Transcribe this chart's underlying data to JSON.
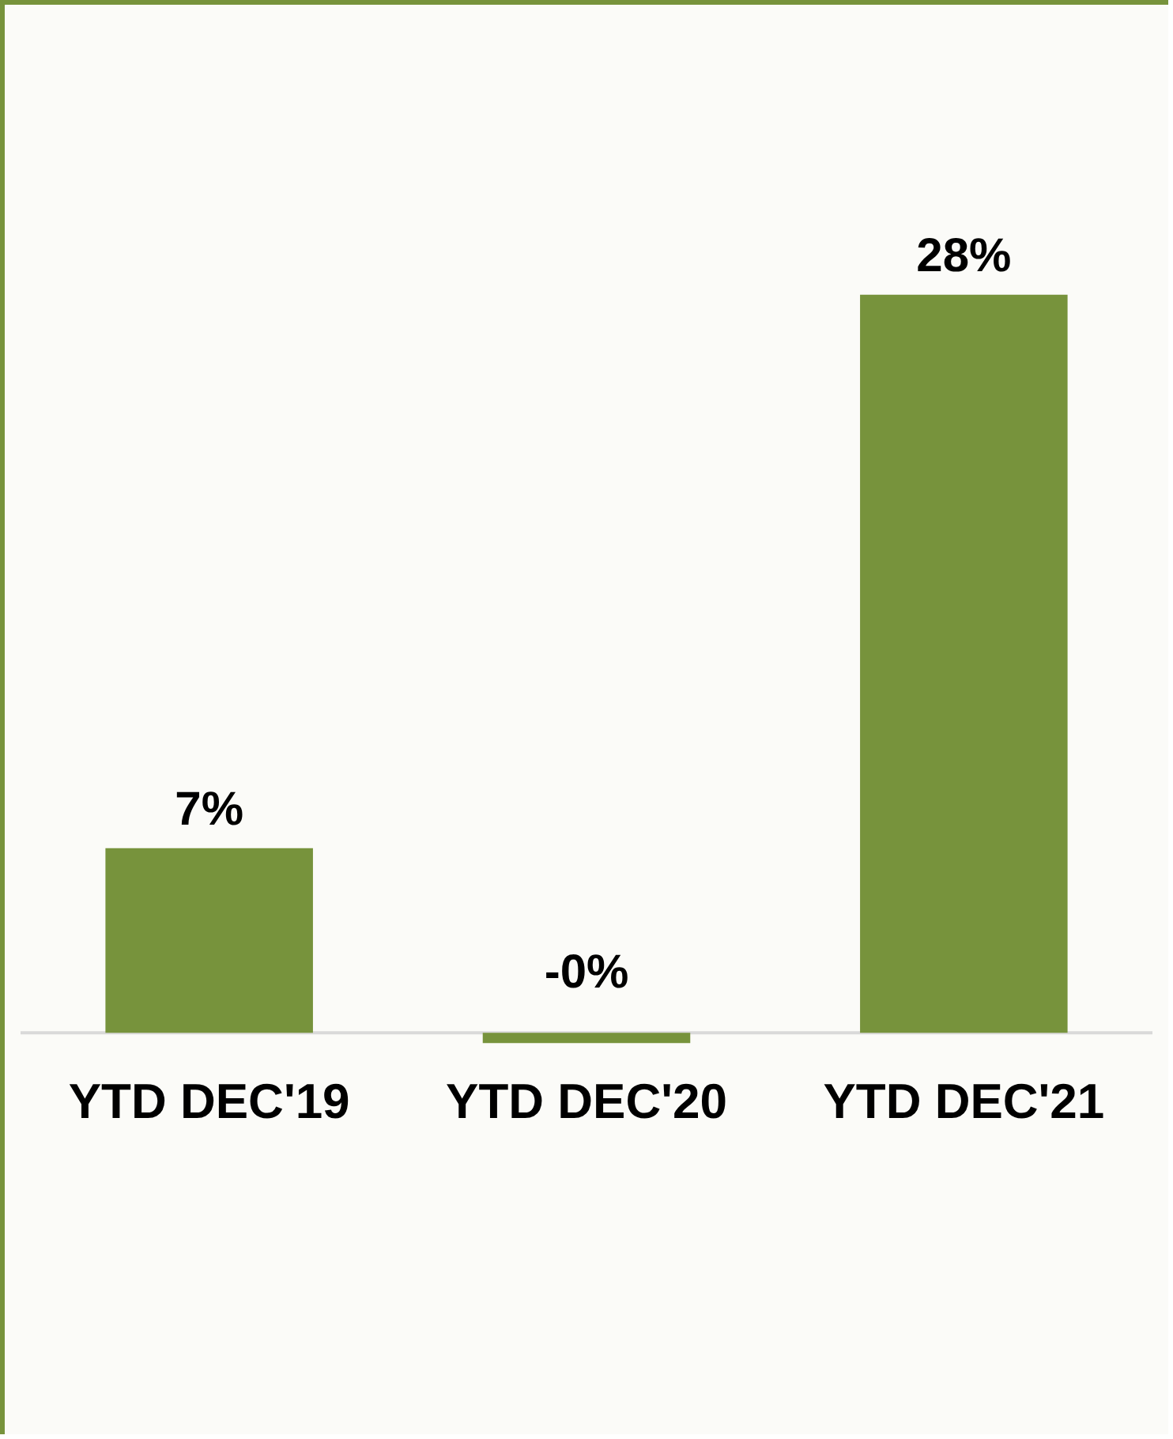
{
  "chart_data": {
    "type": "bar",
    "categories": [
      "YTD DEC'19",
      "YTD DEC'20",
      "YTD DEC'21"
    ],
    "values": [
      7,
      -0.4,
      28
    ],
    "value_labels": [
      "7%",
      "-0%",
      "28%"
    ],
    "color": "#77933c",
    "grid": false,
    "legend": false
  }
}
